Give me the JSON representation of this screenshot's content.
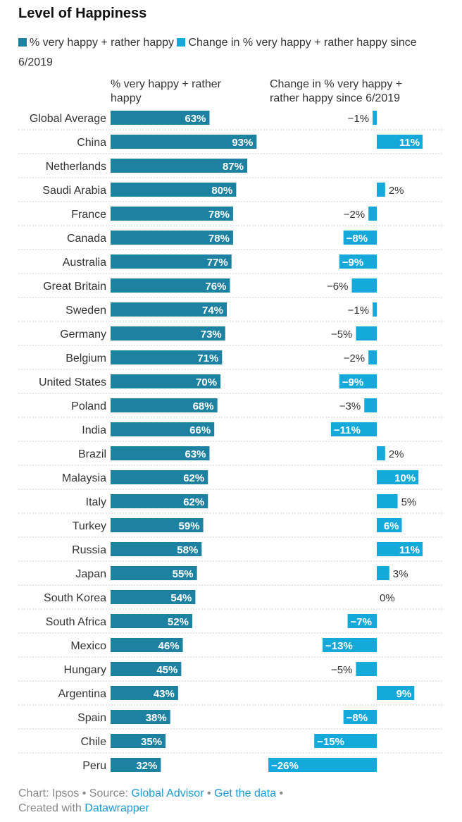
{
  "chart_data": {
    "type": "bar",
    "title": "Level of Happiness",
    "series": [
      {
        "name": "% very happy + rather happy",
        "color": "#1d81a2",
        "column_header": "% very happy + rather happy",
        "values": [
          63,
          93,
          87,
          80,
          78,
          78,
          77,
          76,
          74,
          73,
          71,
          70,
          68,
          66,
          63,
          62,
          62,
          59,
          58,
          55,
          54,
          52,
          46,
          45,
          43,
          38,
          35,
          32
        ],
        "labels": [
          "63%",
          "93%",
          "87%",
          "80%",
          "78%",
          "78%",
          "77%",
          "76%",
          "74%",
          "73%",
          "71%",
          "70%",
          "68%",
          "66%",
          "63%",
          "62%",
          "62%",
          "59%",
          "58%",
          "55%",
          "54%",
          "52%",
          "46%",
          "45%",
          "43%",
          "38%",
          "35%",
          "32%"
        ]
      },
      {
        "name": "Change in % very happy + rather happy since 6/2019",
        "color": "#15a9d9",
        "column_header": "Change in % very happy + rather happy since 6/2019",
        "values": [
          -1,
          11,
          null,
          2,
          -2,
          -8,
          -9,
          -6,
          -1,
          -5,
          -2,
          -9,
          -3,
          -11,
          2,
          10,
          5,
          6,
          11,
          3,
          0,
          -7,
          -13,
          -5,
          9,
          -8,
          -15,
          -26
        ],
        "labels": [
          "−1%",
          "11%",
          "",
          "2%",
          "−2%",
          "−8%",
          "−9%",
          "−6%",
          "−1%",
          "−5%",
          "−2%",
          "−9%",
          "−3%",
          "−11%",
          "2%",
          "10%",
          "5%",
          "6%",
          "11%",
          "3%",
          "0%",
          "−7%",
          "−13%",
          "−5%",
          "9%",
          "−8%",
          "−15%",
          "−26%"
        ]
      }
    ],
    "categories": [
      "Global Average",
      "China",
      "Netherlands",
      "Saudi Arabia",
      "France",
      "Canada",
      "Australia",
      "Great Britain",
      "Sweden",
      "Germany",
      "Belgium",
      "United States",
      "Poland",
      "India",
      "Brazil",
      "Malaysia",
      "Italy",
      "Turkey",
      "Russia",
      "Japan",
      "South Korea",
      "South Africa",
      "Mexico",
      "Hungary",
      "Argentina",
      "Spain",
      "Chile",
      "Peru"
    ],
    "xlim_main": [
      0,
      100
    ],
    "xlim_change": [
      -26,
      11
    ],
    "grid": false,
    "legend_position": "top-left"
  },
  "footer": {
    "chart_prefix": "Chart: Ipsos",
    "source_prefix": "Source:",
    "source_link": "Global Advisor",
    "data_link": "Get the data",
    "created_prefix": "Created with",
    "created_link": "Datawrapper"
  }
}
